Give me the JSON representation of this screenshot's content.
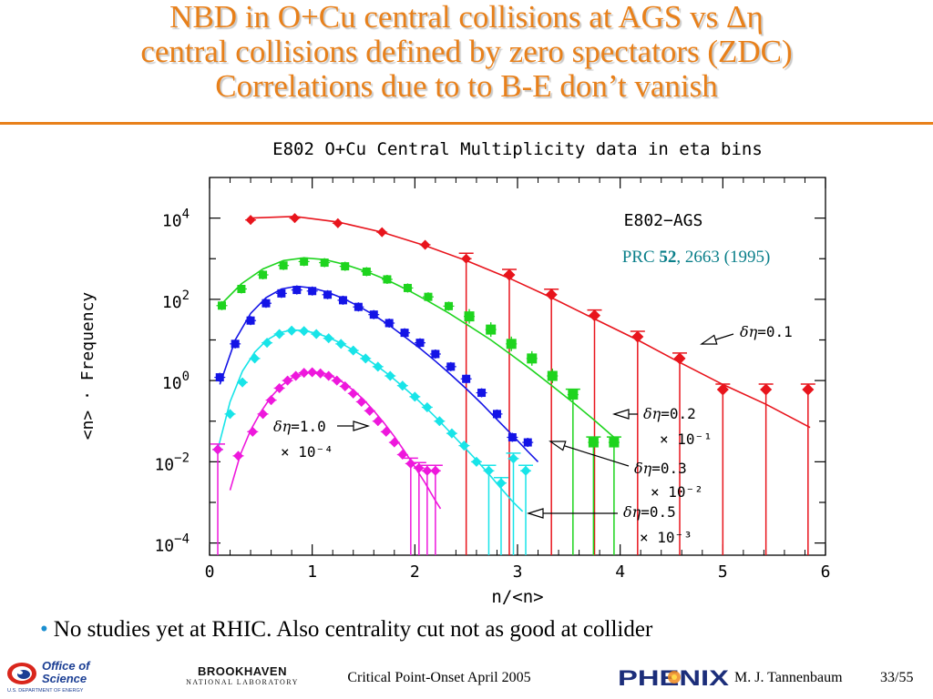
{
  "slide": {
    "title_lines": [
      "NBD in O+Cu central collisions at AGS vs Δη",
      "central collisions defined by zero spectators (ZDC)",
      "Correlations due to to B-E don’t vanish"
    ],
    "bullet": "No studies yet at RHIC. Also centrality cut not as good at collider",
    "footer": {
      "office_line1": "Office of",
      "office_line2": "Science",
      "office_line3": "U.S. DEPARTMENT OF ENERGY",
      "bnl_line1": "BROOKHAVEN",
      "bnl_line2": "NATIONAL LABORATORY",
      "center": "Critical Point-Onset April 2005",
      "phenix": "PHENIX",
      "author": "M. J. Tannenbaum",
      "page": "33/55"
    }
  },
  "chart_data": {
    "type": "scatter",
    "title": "E802 O+Cu Central Multiplicity data in eta bins",
    "xlabel": "n/<n>",
    "ylabel": "<n> · Frequency",
    "xlim": [
      0,
      6
    ],
    "ylim_log10": [
      -4.3,
      5
    ],
    "y_scale": "log",
    "x_ticks": [
      "0",
      "1",
      "2",
      "3",
      "4",
      "5",
      "6"
    ],
    "y_ticks": [
      {
        "base": "10",
        "exp": "4",
        "log10": 4
      },
      {
        "base": "10",
        "exp": "2",
        "log10": 2
      },
      {
        "base": "10",
        "exp": "0",
        "log10": 0
      },
      {
        "base": "10",
        "exp": "−2",
        "log10": -2
      },
      {
        "base": "10",
        "exp": "−4",
        "log10": -4
      }
    ],
    "annotations": {
      "experiment": "E802−AGS",
      "ref_prefix": "PRC ",
      "ref_bold": "52",
      "ref_suffix": ", 2663 (1995)"
    },
    "series": [
      {
        "color": "#e8141c",
        "marker": "diamond",
        "label_eta": "=0.1",
        "label_scale": "",
        "x": [
          0.4,
          0.83,
          1.25,
          1.68,
          2.1,
          2.5,
          2.92,
          3.33,
          3.75,
          4.17,
          4.58,
          5.0,
          5.42,
          5.83
        ],
        "y": [
          9000,
          10000,
          7500,
          4500,
          2200,
          1000,
          400,
          130,
          40,
          12,
          3.5,
          0.6,
          0.6,
          0.6
        ],
        "fit": [
          [
            0.4,
            10000
          ],
          [
            0.83,
            11000
          ],
          [
            1.25,
            8000
          ],
          [
            1.68,
            4500
          ],
          [
            2.1,
            2100
          ],
          [
            2.5,
            900
          ],
          [
            2.92,
            330
          ],
          [
            3.33,
            110
          ],
          [
            3.75,
            33
          ],
          [
            4.17,
            10
          ],
          [
            4.58,
            2.8
          ],
          [
            5.0,
            0.8
          ],
          [
            5.42,
            0.26
          ],
          [
            5.85,
            0.07
          ]
        ]
      },
      {
        "color": "#1ed41e",
        "marker": "square",
        "label_eta": "=0.2",
        "label_scale": "10⁻¹",
        "x": [
          0.12,
          0.31,
          0.52,
          0.72,
          0.92,
          1.12,
          1.32,
          1.53,
          1.73,
          1.93,
          2.13,
          2.33,
          2.53,
          2.74,
          2.94,
          3.14,
          3.34,
          3.54,
          3.74,
          3.94
        ],
        "y": [
          70,
          180,
          400,
          680,
          850,
          800,
          650,
          480,
          310,
          190,
          115,
          68,
          38,
          18,
          8,
          3.5,
          1.3,
          0.45,
          0.03,
          0.03
        ],
        "fit": [
          [
            0.1,
            70
          ],
          [
            0.31,
            240
          ],
          [
            0.52,
            560
          ],
          [
            0.72,
            900
          ],
          [
            0.92,
            1050
          ],
          [
            1.12,
            950
          ],
          [
            1.32,
            720
          ],
          [
            1.53,
            480
          ],
          [
            1.73,
            300
          ],
          [
            1.93,
            170
          ],
          [
            2.13,
            90
          ],
          [
            2.33,
            46
          ],
          [
            2.53,
            22
          ],
          [
            2.74,
            10
          ],
          [
            2.94,
            4.3
          ],
          [
            3.14,
            1.8
          ],
          [
            3.34,
            0.73
          ],
          [
            3.54,
            0.29
          ],
          [
            3.74,
            0.11
          ],
          [
            3.94,
            0.04
          ]
        ]
      },
      {
        "color": "#1414e6",
        "marker": "square",
        "label_eta": "=0.3",
        "label_scale": "10⁻²",
        "x": [
          0.1,
          0.25,
          0.4,
          0.55,
          0.7,
          0.85,
          1.0,
          1.15,
          1.3,
          1.45,
          1.6,
          1.75,
          1.9,
          2.05,
          2.2,
          2.35,
          2.5,
          2.65,
          2.8,
          2.95,
          3.1
        ],
        "y": [
          1.2,
          8,
          30,
          80,
          140,
          170,
          160,
          130,
          95,
          65,
          42,
          26,
          15,
          8.5,
          4.5,
          2.2,
          1.1,
          0.5,
          0.15,
          0.04,
          0.03
        ],
        "fit": [
          [
            0.1,
            0.8
          ],
          [
            0.25,
            10
          ],
          [
            0.4,
            45
          ],
          [
            0.55,
            110
          ],
          [
            0.7,
            180
          ],
          [
            0.85,
            210
          ],
          [
            1.0,
            190
          ],
          [
            1.15,
            150
          ],
          [
            1.3,
            105
          ],
          [
            1.45,
            68
          ],
          [
            1.6,
            41
          ],
          [
            1.75,
            23
          ],
          [
            1.9,
            12
          ],
          [
            2.05,
            6.2
          ],
          [
            2.2,
            3.0
          ],
          [
            2.35,
            1.4
          ],
          [
            2.5,
            0.63
          ],
          [
            2.65,
            0.27
          ],
          [
            2.8,
            0.11
          ],
          [
            2.95,
            0.045
          ],
          [
            3.1,
            0.018
          ],
          [
            3.2,
            0.01
          ]
        ]
      },
      {
        "color": "#18e4e8",
        "marker": "diamond",
        "label_eta": "=0.5",
        "label_scale": "10⁻³",
        "x": [
          0.08,
          0.2,
          0.32,
          0.44,
          0.56,
          0.68,
          0.8,
          0.92,
          1.04,
          1.16,
          1.28,
          1.4,
          1.52,
          1.64,
          1.76,
          1.88,
          2.0,
          2.12,
          2.24,
          2.36,
          2.48,
          2.6,
          2.72,
          2.84,
          2.96,
          3.08
        ],
        "y": [
          0.02,
          0.15,
          0.9,
          3.5,
          8.5,
          14,
          17,
          16.5,
          14,
          11,
          8,
          5.5,
          3.5,
          2.2,
          1.3,
          0.75,
          0.4,
          0.22,
          0.1,
          0.05,
          0.025,
          0.01,
          0.006,
          0.003,
          0.012,
          0.006
        ],
        "fit": [
          [
            0.08,
            0.02
          ],
          [
            0.2,
            0.3
          ],
          [
            0.32,
            1.7
          ],
          [
            0.44,
            5.0
          ],
          [
            0.56,
            10
          ],
          [
            0.68,
            15
          ],
          [
            0.8,
            17.5
          ],
          [
            0.92,
            17
          ],
          [
            1.04,
            14.5
          ],
          [
            1.16,
            11.5
          ],
          [
            1.28,
            8.3
          ],
          [
            1.4,
            5.6
          ],
          [
            1.52,
            3.6
          ],
          [
            1.64,
            2.2
          ],
          [
            1.76,
            1.3
          ],
          [
            1.88,
            0.72
          ],
          [
            2.0,
            0.39
          ],
          [
            2.12,
            0.2
          ],
          [
            2.24,
            0.1
          ],
          [
            2.36,
            0.048
          ],
          [
            2.48,
            0.023
          ],
          [
            2.6,
            0.011
          ],
          [
            2.72,
            0.005
          ],
          [
            2.84,
            0.0022
          ],
          [
            2.96,
            0.001
          ],
          [
            3.05,
            0.0006
          ]
        ]
      },
      {
        "color": "#ee18dc",
        "marker": "diamond",
        "label_eta": "=1.0",
        "label_scale": "10⁻⁴",
        "x": [
          0.08,
          0.28,
          0.42,
          0.52,
          0.6,
          0.68,
          0.76,
          0.84,
          0.92,
          1.0,
          1.08,
          1.16,
          1.24,
          1.32,
          1.4,
          1.48,
          1.56,
          1.64,
          1.72,
          1.8,
          1.88,
          1.96,
          2.04,
          2.12,
          2.2
        ],
        "y": [
          0.02,
          0.014,
          0.055,
          0.15,
          0.33,
          0.65,
          1.0,
          1.3,
          1.55,
          1.6,
          1.5,
          1.3,
          1.0,
          0.72,
          0.48,
          0.3,
          0.18,
          0.1,
          0.055,
          0.03,
          0.015,
          0.009,
          0.007,
          0.006,
          0.006
        ],
        "fit": [
          [
            0.2,
            0.002
          ],
          [
            0.3,
            0.015
          ],
          [
            0.4,
            0.06
          ],
          [
            0.5,
            0.17
          ],
          [
            0.6,
            0.4
          ],
          [
            0.7,
            0.75
          ],
          [
            0.8,
            1.15
          ],
          [
            0.9,
            1.5
          ],
          [
            1.0,
            1.65
          ],
          [
            1.1,
            1.55
          ],
          [
            1.2,
            1.25
          ],
          [
            1.3,
            0.9
          ],
          [
            1.4,
            0.58
          ],
          [
            1.5,
            0.34
          ],
          [
            1.6,
            0.18
          ],
          [
            1.7,
            0.09
          ],
          [
            1.8,
            0.042
          ],
          [
            1.9,
            0.018
          ],
          [
            2.0,
            0.0075
          ],
          [
            2.1,
            0.003
          ],
          [
            2.2,
            0.0011
          ],
          [
            2.25,
            0.0007
          ]
        ]
      }
    ]
  }
}
